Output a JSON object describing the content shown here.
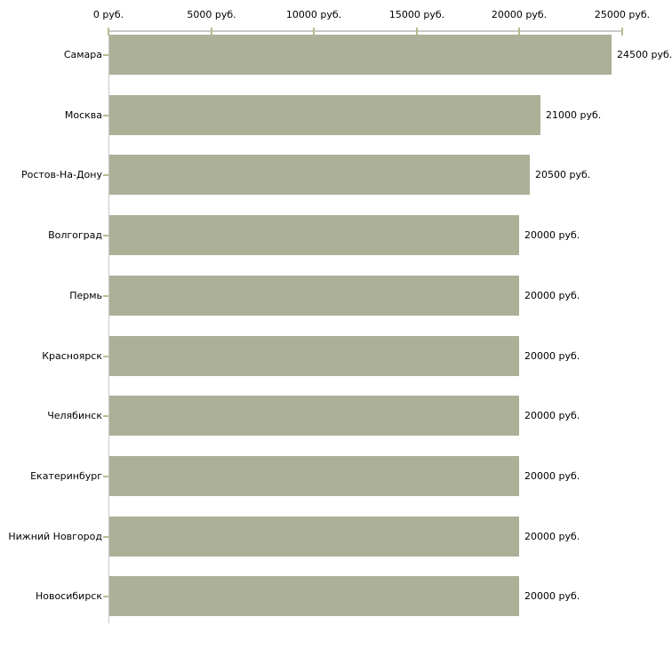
{
  "chart_data": {
    "type": "bar",
    "orientation": "horizontal",
    "title": "",
    "xlabel": "",
    "ylabel": "",
    "grid": false,
    "legend": false,
    "categories": [
      "Самара",
      "Москва",
      "Ростов-На-Дону",
      "Волгоград",
      "Пермь",
      "Красноярск",
      "Челябинск",
      "Екатеринбург",
      "Нижний Новгород",
      "Новосибирск"
    ],
    "values": [
      24500,
      21000,
      20500,
      20000,
      20000,
      20000,
      20000,
      20000,
      20000,
      20000
    ],
    "value_labels": [
      "24500 руб.",
      "21000 руб.",
      "20500 руб.",
      "20000 руб.",
      "20000 руб.",
      "20000 руб.",
      "20000 руб.",
      "20000 руб.",
      "20000 руб.",
      "20000 руб."
    ],
    "x_axis": {
      "range": [
        0,
        25000
      ],
      "tick_values": [
        0,
        5000,
        10000,
        15000,
        20000,
        25000
      ],
      "tick_labels": [
        "0 руб.",
        "5000 руб.",
        "10000 руб.",
        "15000 руб.",
        "20000 руб.",
        "25000 руб."
      ]
    },
    "colors": {
      "bar": "#abb097",
      "axis_line": "#c9c9c9",
      "tick_mark": "#b9ba8c",
      "text": "#000000",
      "background": "#ffffff"
    }
  }
}
